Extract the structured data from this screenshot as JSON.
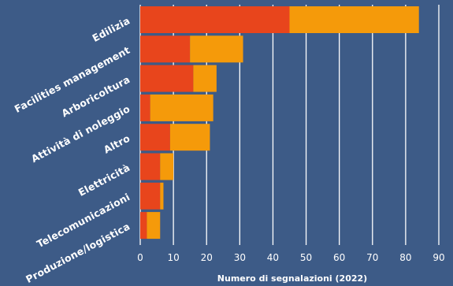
{
  "chart_data": {
    "type": "bar",
    "orientation": "horizontal",
    "stacked": true,
    "categories": [
      "Edilizia",
      "Facilities management",
      "Arboricoltura",
      "Attività di noleggio",
      "Altro",
      "Elettricità",
      "Telecomunicazioni",
      "Produzione/logistica"
    ],
    "series": [
      {
        "values": [
          45,
          15,
          16,
          3,
          9,
          6,
          6,
          2
        ],
        "color": "#e8451c"
      },
      {
        "values": [
          39,
          16,
          7,
          19,
          12,
          4,
          1,
          4
        ],
        "color": "#f59a0a"
      }
    ],
    "xlabel": "Numero di segnalazioni (2022)",
    "xlim": [
      0,
      90
    ],
    "xticks": [
      0,
      10,
      20,
      30,
      40,
      50,
      60,
      70,
      80,
      90
    ],
    "grid": true,
    "legend": "none"
  }
}
